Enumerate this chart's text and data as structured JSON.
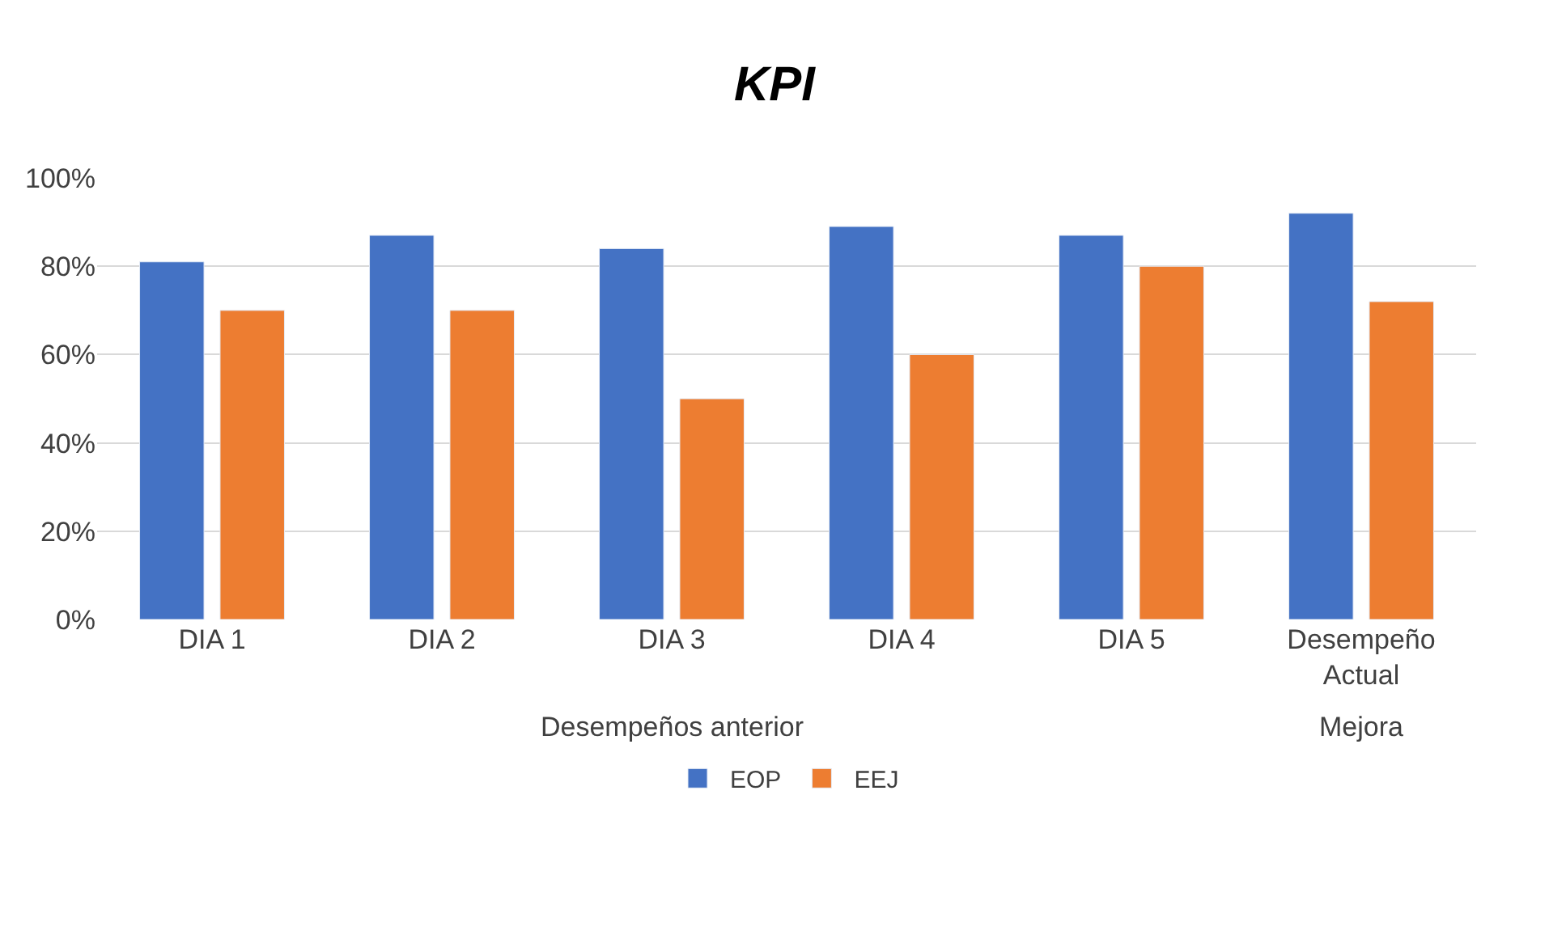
{
  "chart_data": {
    "type": "bar",
    "title": "KPI",
    "categories": [
      "DIA 1",
      "DIA 2",
      "DIA 3",
      "DIA 4",
      "DIA 5",
      "Desempeño Actual"
    ],
    "series": [
      {
        "name": "EOP",
        "color": "#4472c4",
        "values": [
          0.81,
          0.87,
          0.84,
          0.89,
          0.87,
          0.92
        ]
      },
      {
        "name": "EEJ",
        "color": "#ed7d31",
        "values": [
          0.7,
          0.7,
          0.5,
          0.6,
          0.8,
          0.72
        ]
      }
    ],
    "ylim": [
      0,
      1
    ],
    "yticks": [
      {
        "value": 0,
        "label": "0%"
      },
      {
        "value": 0.2,
        "label": "20%"
      },
      {
        "value": 0.4,
        "label": "40%"
      },
      {
        "value": 0.6,
        "label": "60%"
      },
      {
        "value": 0.8,
        "label": "80%"
      },
      {
        "value": 1,
        "label": "100%"
      }
    ],
    "grid": "y",
    "legend": "bottom",
    "annotations": [
      "Desempeños anterior",
      "Mejora"
    ]
  }
}
